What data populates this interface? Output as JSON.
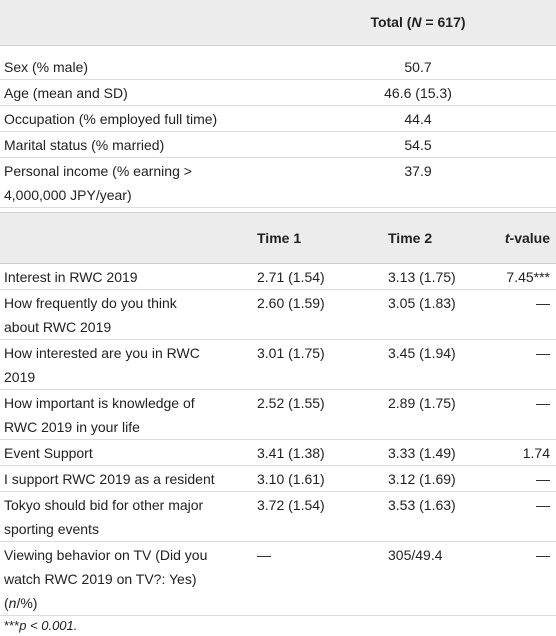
{
  "table1": {
    "header": [
      [
        {
          "text": "Total ("
        },
        {
          "text": "N",
          "italic": true
        },
        {
          "text": " = 617)"
        }
      ]
    ],
    "rows": [
      [
        "Sex (% male)",
        "50.7"
      ],
      [
        "Age (mean and SD)",
        "46.6 (15.3)"
      ],
      [
        "Occupation (% employed full time)",
        "44.4"
      ],
      [
        "Marital status (% married)",
        "54.5"
      ],
      [
        [
          "Personal income (% earning >",
          "4,000,000 JPY/year)"
        ],
        "37.9"
      ]
    ]
  },
  "table2": {
    "header": [
      "Time 1",
      "Time 2",
      [
        [
          {
            "text": "t",
            "italic": true
          },
          {
            "text": "-value"
          }
        ]
      ]
    ],
    "rows": [
      [
        "Interest in RWC 2019",
        "2.71 (1.54)",
        "3.13 (1.75)",
        "7.45***"
      ],
      [
        [
          "How frequently do you think",
          "about RWC 2019"
        ],
        "2.60 (1.59)",
        "3.05 (1.83)",
        "—"
      ],
      [
        [
          "How interested are you in RWC",
          "2019"
        ],
        "3.01 (1.75)",
        "3.45 (1.94)",
        "—"
      ],
      [
        [
          "How important is knowledge of",
          "RWC 2019 in your life"
        ],
        "2.52 (1.55)",
        "2.89 (1.75)",
        "—"
      ],
      [
        "Event Support",
        "3.41 (1.38)",
        "3.33 (1.49)",
        "1.74"
      ],
      [
        "I support RWC 2019 as a resident",
        "3.10 (1.61)",
        "3.12 (1.69)",
        "—"
      ],
      [
        [
          "Tokyo should bid for other major",
          "sporting events"
        ],
        "3.72 (1.54)",
        "3.53 (1.63)",
        "—"
      ],
      [
        [
          "Viewing behavior on TV (Did you",
          "watch RWC 2019 on TV?: Yes)",
          [
            {
              "text": "("
            },
            {
              "text": "n",
              "italic": true
            },
            {
              "text": "/%)"
            }
          ]
        ],
        "—",
        "305/49.4",
        "—"
      ]
    ]
  },
  "footnote": [
    [
      {
        "text": "***"
      },
      {
        "text": "p < 0.001.",
        "italic": true
      }
    ]
  ]
}
